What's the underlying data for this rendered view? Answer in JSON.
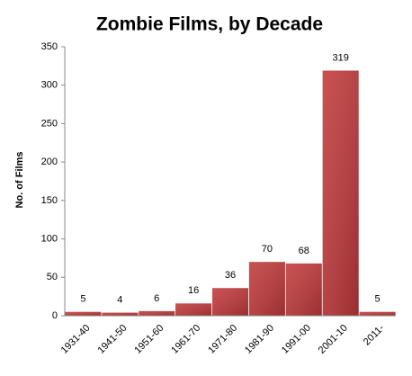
{
  "chart_data": {
    "type": "bar",
    "title": "Zombie Films, by Decade",
    "y_label": "No. of Films",
    "categories": [
      "1931-40",
      "1941-50",
      "1951-60",
      "1961-70",
      "1971-80",
      "1981-90",
      "1991-00",
      "2001-10",
      "2011-"
    ],
    "values": [
      5,
      4,
      6,
      16,
      36,
      70,
      68,
      319,
      5
    ],
    "color": "#c0393b",
    "ylim": [
      0,
      350
    ],
    "yticks": [
      0,
      50,
      100,
      150,
      200,
      250,
      300,
      350
    ]
  }
}
